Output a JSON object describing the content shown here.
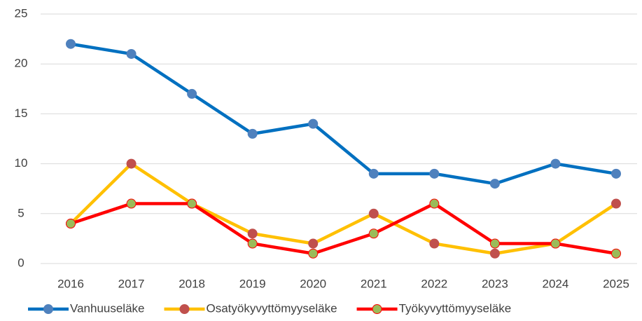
{
  "chart_data": {
    "type": "line",
    "categories": [
      "2016",
      "2017",
      "2018",
      "2019",
      "2020",
      "2021",
      "2022",
      "2023",
      "2024",
      "2025"
    ],
    "series": [
      {
        "name": "Vanhuuseläke",
        "color": "#0070c0",
        "marker_color": "#4f81bd",
        "values": [
          22,
          21,
          17,
          13,
          14,
          9,
          9,
          8,
          10,
          9
        ]
      },
      {
        "name": "Osatyökyvyttömyyseläke",
        "color": "#ffc000",
        "marker_color": "#c0504d",
        "values": [
          4,
          10,
          6,
          3,
          2,
          5,
          2,
          1,
          2,
          6
        ]
      },
      {
        "name": "Työkyvyttömyyseläke",
        "color": "#ff0000",
        "marker_color": "#9bbb59",
        "values": [
          4,
          6,
          6,
          2,
          1,
          3,
          6,
          2,
          2,
          1
        ]
      }
    ],
    "ylim": [
      0,
      25
    ],
    "yticks": [
      0,
      5,
      10,
      15,
      20,
      25
    ],
    "grid": true,
    "legend": "bottom"
  }
}
